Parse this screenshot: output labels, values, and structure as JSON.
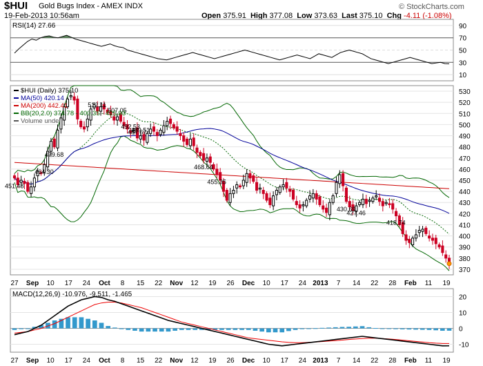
{
  "header": {
    "symbol": "$HUI",
    "name": "Gold Bugs Index - AMEX INDX",
    "date": "19-Feb-2013 10:56am",
    "open_label": "Open",
    "open": "375.91",
    "high_label": "High",
    "high": "377.08",
    "low_label": "Low",
    "low": "373.63",
    "last_label": "Last",
    "last": "375.10",
    "chg_label": "Chg",
    "chg": "-4.11 (-1.08%)",
    "brand": "© StockCharts.com"
  },
  "colors": {
    "up": "#000000",
    "down": "#cc0022",
    "ma50": "#000099",
    "ma200": "#cc0000",
    "bb": "#006600",
    "rsi_fill": "#447744",
    "macd_hist": "#3399cc"
  },
  "chart_data": [
    {
      "type": "line",
      "panel": "rsi",
      "legend": "RSI(14) 27.66",
      "ylim": [
        0,
        100
      ],
      "yticks": [
        90,
        70,
        50,
        30,
        10
      ],
      "levels": [
        70,
        30
      ],
      "series": [
        {
          "name": "RSI(14)",
          "values": [
            45,
            52,
            58,
            64,
            68,
            66,
            70,
            72,
            73,
            71,
            70,
            72,
            74,
            71,
            68,
            66,
            64,
            62,
            60,
            58,
            56,
            58,
            60,
            57,
            55,
            54,
            50,
            48,
            46,
            44,
            42,
            40,
            38,
            36,
            35,
            34,
            36,
            38,
            40,
            42,
            44,
            46,
            44,
            42,
            40,
            38,
            36,
            38,
            40,
            42,
            44,
            46,
            48,
            50,
            48,
            46,
            44,
            42,
            40,
            38,
            36,
            34,
            36,
            38,
            40,
            42,
            40,
            38,
            36,
            40,
            44,
            42,
            40,
            38,
            42,
            46,
            48,
            50,
            48,
            46,
            44,
            40,
            36,
            34,
            32,
            30,
            28,
            30,
            32,
            34,
            36,
            38,
            36,
            34,
            32,
            30,
            28,
            29,
            30,
            28,
            27.66
          ]
        }
      ]
    },
    {
      "type": "candlestick",
      "panel": "price",
      "legend": [
        "$HUI (Daily) 375.10",
        "MA(50) 420.14",
        "MA(200) 442.41",
        "BB(20,2.0) 374.78 - 400.35 - 425.93",
        "Volume undef"
      ],
      "ylim": [
        365,
        535
      ],
      "yticks": [
        530,
        520,
        510,
        500,
        490,
        480,
        470,
        460,
        450,
        440,
        430,
        420,
        410,
        400,
        390,
        380,
        370
      ],
      "x_tick_labels": [
        "27",
        "Sep",
        "10",
        "17",
        "24",
        "Oct",
        "8",
        "15",
        "22",
        "Nov",
        "12",
        "19",
        "26",
        "Dec",
        "10",
        "17",
        "24",
        "2013",
        "7",
        "14",
        "22",
        "28",
        "Feb",
        "11",
        "19"
      ],
      "close": [
        452,
        446,
        450,
        447,
        440,
        444,
        452,
        458,
        456,
        464,
        476,
        485,
        480,
        495,
        506,
        516,
        523,
        526,
        522,
        505,
        498,
        496,
        505,
        514,
        518,
        512,
        516,
        514,
        511,
        509,
        504,
        507,
        503,
        499,
        496,
        493,
        495,
        488,
        490,
        486,
        492,
        496,
        494,
        490,
        495,
        499,
        503,
        501,
        497,
        494,
        490,
        485,
        482,
        487,
        481,
        475,
        472,
        468,
        470,
        466,
        460,
        455,
        450,
        440,
        432,
        438,
        441,
        446,
        444,
        450,
        456,
        452,
        449,
        441,
        443,
        438,
        432,
        428,
        436,
        441,
        444,
        446,
        443,
        440,
        433,
        428,
        425,
        428,
        432,
        436,
        438,
        433,
        428,
        424,
        421,
        430,
        436,
        448,
        455,
        445,
        431,
        426,
        423,
        427,
        430,
        433,
        429,
        432,
        434,
        436,
        431,
        427,
        430,
        428,
        424,
        418,
        410,
        402,
        396,
        394,
        398,
        401,
        405,
        406,
        402,
        398,
        396,
        393,
        390,
        385,
        380,
        375.1
      ],
      "annotations": [
        {
          "label": "489.51",
          "price": 489.51
        },
        {
          "label": "512.11",
          "price": 512.11
        },
        {
          "label": "507.05",
          "price": 507.05
        },
        {
          "label": "487.67",
          "price": 487.67
        },
        {
          "label": "492.53",
          "price": 492.53
        },
        {
          "label": "479.68",
          "price": 479.68
        },
        {
          "label": "468.64",
          "price": 468.64
        },
        {
          "label": "464.30",
          "price": 464.3
        },
        {
          "label": "451.48",
          "price": 451.48
        },
        {
          "label": "455.35",
          "price": 455.35
        },
        {
          "label": "430.69",
          "price": 430.69
        },
        {
          "label": "427.46",
          "price": 427.46
        },
        {
          "label": "418.74",
          "price": 418.74
        }
      ]
    },
    {
      "type": "line",
      "panel": "macd",
      "legend": "MACD(12,26,9) -10.976, -9.511, -1.465",
      "ylim": [
        -15,
        25
      ],
      "yticks": [
        20,
        10,
        0,
        -10
      ],
      "series": [
        {
          "name": "MACD",
          "values": [
            -4,
            -3,
            -2,
            0,
            2,
            5,
            8,
            11,
            14,
            16,
            18,
            19,
            20,
            19.5,
            18,
            17,
            15.5,
            14,
            12.5,
            11,
            9.5,
            8,
            6.5,
            5,
            4,
            3,
            2,
            1,
            0,
            -1,
            -2,
            -3,
            -4,
            -5,
            -6,
            -7,
            -8,
            -9,
            -10,
            -10.5,
            -11,
            -10.5,
            -10,
            -9.5,
            -9,
            -8.5,
            -8,
            -7.5,
            -7,
            -6.5,
            -6,
            -5.5,
            -5,
            -5.5,
            -6,
            -6.5,
            -7,
            -7.5,
            -8,
            -8.5,
            -9,
            -9.5,
            -10,
            -10.5,
            -11,
            -10.976
          ]
        },
        {
          "name": "Signal",
          "values": [
            -3,
            -2.5,
            -2,
            -1,
            0,
            1.5,
            3,
            5,
            7,
            9,
            11,
            13,
            15,
            16,
            16.5,
            16.5,
            16,
            15,
            14,
            13,
            11.5,
            10,
            8.5,
            7,
            5.5,
            4,
            3,
            2,
            1,
            0,
            -1,
            -2,
            -3,
            -4,
            -5,
            -6,
            -6.5,
            -7,
            -7.5,
            -8,
            -8.5,
            -8.8,
            -9,
            -9,
            -8.8,
            -8.6,
            -8.3,
            -8,
            -7.7,
            -7.4,
            -7,
            -6.7,
            -6.4,
            -6.2,
            -6.2,
            -6.4,
            -6.7,
            -7,
            -7.4,
            -7.8,
            -8.2,
            -8.6,
            -9,
            -9.3,
            -9.5,
            -9.511
          ]
        }
      ]
    }
  ]
}
